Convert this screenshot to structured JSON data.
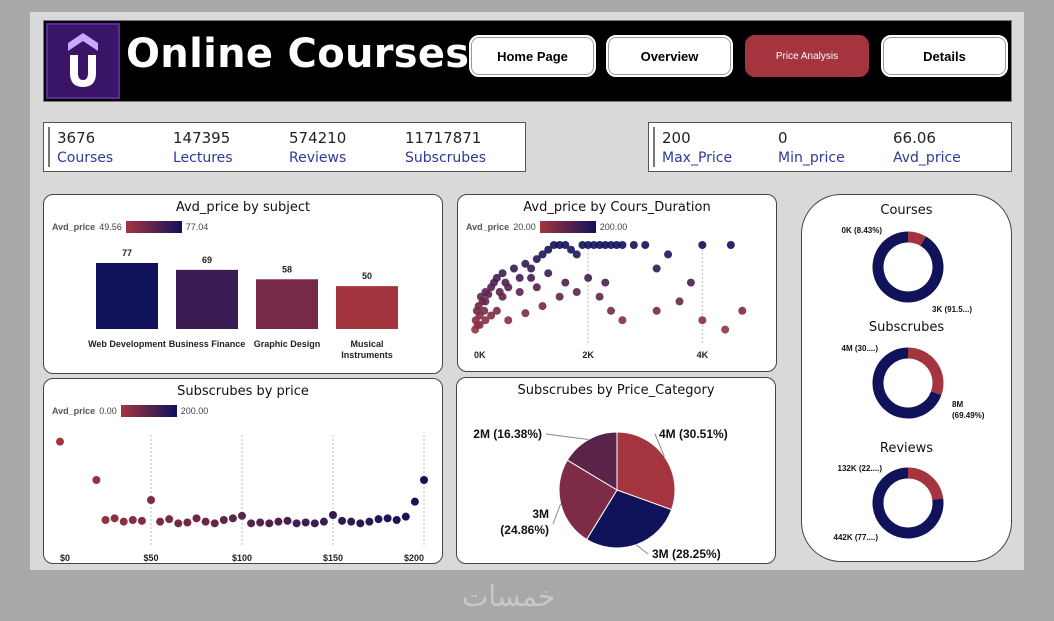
{
  "header": {
    "title": "Online Courses",
    "logo_letter": "U",
    "nav": [
      {
        "label": "Home Page"
      },
      {
        "label": "Overview"
      },
      {
        "label": "Price Analysis"
      },
      {
        "label": "Details"
      }
    ]
  },
  "kpi_left": [
    {
      "value": "3676",
      "label": "Courses"
    },
    {
      "value": "147395",
      "label": "Lectures"
    },
    {
      "value": "574210",
      "label": "Reviews"
    },
    {
      "value": "11717871",
      "label": "Subscrubes"
    }
  ],
  "kpi_right": [
    {
      "value": "200",
      "label": "Max_Price"
    },
    {
      "value": "0",
      "label": "Min_price"
    },
    {
      "value": "66.06",
      "label": "Avd_price"
    }
  ],
  "colors": {
    "red": "#a4353e",
    "navy": "#10125a"
  },
  "watermark": "خمسات",
  "chart_data": [
    {
      "type": "bar",
      "title": "Avd_price by subject",
      "legend_label": "Avd_price",
      "legend_min": "49.56",
      "legend_max": "77.04",
      "categories": [
        "Web Development",
        "Business Finance",
        "Graphic Design",
        "Musical Instruments"
      ],
      "values": [
        77,
        69,
        58,
        50
      ],
      "value_labels": [
        "77",
        "69",
        "58",
        "50"
      ]
    },
    {
      "type": "scatter",
      "title": "Avd_price by Cours_Duration",
      "legend_label": "Avd_price",
      "legend_min": "20.00",
      "legend_max": "200.00",
      "x_ticks": [
        "0K",
        "2K",
        "4K"
      ],
      "x_tick_values": [
        0,
        2000,
        4000
      ],
      "xlim": [
        0,
        4800
      ],
      "ylim": [
        0,
        200
      ],
      "points": [
        [
          20,
          20
        ],
        [
          30,
          40
        ],
        [
          50,
          60
        ],
        [
          60,
          30
        ],
        [
          80,
          70
        ],
        [
          100,
          50
        ],
        [
          120,
          90
        ],
        [
          150,
          80
        ],
        [
          180,
          60
        ],
        [
          200,
          100
        ],
        [
          250,
          95
        ],
        [
          300,
          110
        ],
        [
          350,
          120
        ],
        [
          400,
          130
        ],
        [
          450,
          100
        ],
        [
          500,
          140
        ],
        [
          550,
          120
        ],
        [
          600,
          110
        ],
        [
          700,
          150
        ],
        [
          800,
          130
        ],
        [
          900,
          160
        ],
        [
          1000,
          150
        ],
        [
          1100,
          170
        ],
        [
          1200,
          180
        ],
        [
          1300,
          190
        ],
        [
          1400,
          200
        ],
        [
          1500,
          200
        ],
        [
          1600,
          200
        ],
        [
          1700,
          190
        ],
        [
          1800,
          180
        ],
        [
          1900,
          200
        ],
        [
          2000,
          200
        ],
        [
          2100,
          200
        ],
        [
          2200,
          200
        ],
        [
          2300,
          200
        ],
        [
          2400,
          200
        ],
        [
          2500,
          200
        ],
        [
          2600,
          200
        ],
        [
          2800,
          200
        ],
        [
          3000,
          200
        ],
        [
          3200,
          150
        ],
        [
          3400,
          180
        ],
        [
          4000,
          200
        ],
        [
          4500,
          200
        ],
        [
          100,
          30
        ],
        [
          200,
          40
        ],
        [
          300,
          50
        ],
        [
          400,
          60
        ],
        [
          600,
          40
        ],
        [
          900,
          55
        ],
        [
          1200,
          70
        ],
        [
          1500,
          90
        ],
        [
          1800,
          100
        ],
        [
          2200,
          90
        ],
        [
          2400,
          60
        ],
        [
          2600,
          40
        ],
        [
          3200,
          60
        ],
        [
          3600,
          80
        ],
        [
          4000,
          40
        ],
        [
          4400,
          20
        ],
        [
          4700,
          60
        ],
        [
          3800,
          120
        ],
        [
          200,
          80
        ],
        [
          500,
          90
        ],
        [
          800,
          100
        ],
        [
          1100,
          110
        ],
        [
          1600,
          120
        ],
        [
          2000,
          130
        ],
        [
          2300,
          120
        ],
        [
          1000,
          130
        ],
        [
          1300,
          140
        ]
      ]
    },
    {
      "type": "scatter",
      "title": "Subscrubes by price",
      "legend_label": "Avd_price",
      "legend_min": "0.00",
      "legend_max": "200.00",
      "x_ticks": [
        "$0",
        "$50",
        "$100",
        "$150",
        "$200"
      ],
      "x_tick_values": [
        0,
        50,
        100,
        150,
        200
      ],
      "xlim": [
        0,
        200
      ],
      "points": [
        [
          0,
          560
        ],
        [
          20,
          330
        ],
        [
          25,
          90
        ],
        [
          30,
          100
        ],
        [
          35,
          80
        ],
        [
          40,
          90
        ],
        [
          45,
          85
        ],
        [
          50,
          210
        ],
        [
          55,
          80
        ],
        [
          60,
          95
        ],
        [
          65,
          70
        ],
        [
          70,
          75
        ],
        [
          75,
          100
        ],
        [
          80,
          80
        ],
        [
          85,
          70
        ],
        [
          90,
          90
        ],
        [
          95,
          100
        ],
        [
          100,
          115
        ],
        [
          105,
          70
        ],
        [
          110,
          75
        ],
        [
          115,
          70
        ],
        [
          120,
          80
        ],
        [
          125,
          85
        ],
        [
          130,
          70
        ],
        [
          135,
          75
        ],
        [
          140,
          70
        ],
        [
          145,
          80
        ],
        [
          150,
          120
        ],
        [
          155,
          85
        ],
        [
          160,
          80
        ],
        [
          165,
          70
        ],
        [
          170,
          80
        ],
        [
          175,
          95
        ],
        [
          180,
          100
        ],
        [
          185,
          90
        ],
        [
          190,
          110
        ],
        [
          195,
          200
        ],
        [
          200,
          330
        ]
      ]
    },
    {
      "type": "pie",
      "title": "Subscrubes by Price_Category",
      "slices": [
        {
          "label": "4M (30.51%)",
          "value": 30.51,
          "color": "#a4353e"
        },
        {
          "label": "3M (28.25%)",
          "value": 28.25,
          "color": "#10125a"
        },
        {
          "label": "3M (24.86%)",
          "value": 24.86,
          "color": "#7e2b47"
        },
        {
          "label": "2M (16.38%)",
          "value": 16.38,
          "color": "#5a2349"
        }
      ]
    },
    {
      "type": "pie",
      "title": "Courses",
      "slices": [
        {
          "label": "3K (91.5...)",
          "value": 91.57,
          "color": "#10125a"
        },
        {
          "label": "0K (8.43%)",
          "value": 8.43,
          "color": "#a4353e"
        }
      ]
    },
    {
      "type": "pie",
      "title": "Subscrubes",
      "slices": [
        {
          "label": "8M (69.49%)",
          "value": 69.49,
          "color": "#10125a"
        },
        {
          "label": "4M (30....)",
          "value": 30.51,
          "color": "#a4353e"
        }
      ]
    },
    {
      "type": "pie",
      "title": "Reviews",
      "slices": [
        {
          "label": "442K (77....)",
          "value": 77.0,
          "color": "#10125a"
        },
        {
          "label": "132K (22....)",
          "value": 23.0,
          "color": "#a4353e"
        }
      ]
    }
  ]
}
